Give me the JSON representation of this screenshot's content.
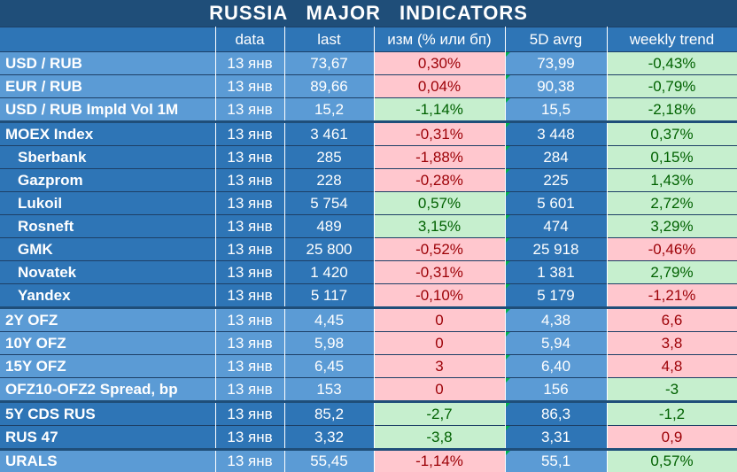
{
  "title": "RUSSIA MAJOR INDICATORS",
  "columns": [
    "",
    "data",
    "last",
    "изм (% или бп)",
    "5D avrg",
    "weekly trend"
  ],
  "colors": {
    "header": "#1f4e79",
    "light_blue": "#5b9bd5",
    "mid_blue": "#2e75b6",
    "positive_bg": "#c6efce",
    "positive_text": "#006100",
    "negative_bg": "#ffc7ce",
    "negative_text": "#9c0006"
  },
  "rows": [
    {
      "label": "USD / RUB",
      "date": "13 янв",
      "last": "73,67",
      "change": "0,30%",
      "change_sign": "neg",
      "avg": "73,99",
      "trend": "-0,43%",
      "trend_sign": "pos",
      "group": "light",
      "indent": false
    },
    {
      "label": "EUR / RUB",
      "date": "13 янв",
      "last": "89,66",
      "change": "0,04%",
      "change_sign": "neg",
      "avg": "90,38",
      "trend": "-0,79%",
      "trend_sign": "pos",
      "group": "light",
      "indent": false
    },
    {
      "label": "USD / RUB Impld Vol 1M",
      "date": "13 янв",
      "last": "15,2",
      "change": "-1,14%",
      "change_sign": "pos",
      "avg": "15,5",
      "trend": "-2,18%",
      "trend_sign": "pos",
      "group": "light",
      "indent": false
    },
    {
      "label": "MOEX Index",
      "date": "13 янв",
      "last": "3 461",
      "change": "-0,31%",
      "change_sign": "neg",
      "avg": "3 448",
      "trend": "0,37%",
      "trend_sign": "pos",
      "group": "dark",
      "indent": false,
      "group_start": true
    },
    {
      "label": "Sberbank",
      "date": "13 янв",
      "last": "285",
      "change": "-1,88%",
      "change_sign": "neg",
      "avg": "284",
      "trend": "0,15%",
      "trend_sign": "pos",
      "group": "dark",
      "indent": true
    },
    {
      "label": "Gazprom",
      "date": "13 янв",
      "last": "228",
      "change": "-0,28%",
      "change_sign": "neg",
      "avg": "225",
      "trend": "1,43%",
      "trend_sign": "pos",
      "group": "dark",
      "indent": true
    },
    {
      "label": "Lukoil",
      "date": "13 янв",
      "last": "5 754",
      "change": "0,57%",
      "change_sign": "pos",
      "avg": "5 601",
      "trend": "2,72%",
      "trend_sign": "pos",
      "group": "dark",
      "indent": true
    },
    {
      "label": "Rosneft",
      "date": "13 янв",
      "last": "489",
      "change": "3,15%",
      "change_sign": "pos",
      "avg": "474",
      "trend": "3,29%",
      "trend_sign": "pos",
      "group": "dark",
      "indent": true
    },
    {
      "label": "GMK",
      "date": "13 янв",
      "last": "25 800",
      "change": "-0,52%",
      "change_sign": "neg",
      "avg": "25 918",
      "trend": "-0,46%",
      "trend_sign": "neg",
      "group": "dark",
      "indent": true
    },
    {
      "label": "Novatek",
      "date": "13 янв",
      "last": "1 420",
      "change": "-0,31%",
      "change_sign": "neg",
      "avg": "1 381",
      "trend": "2,79%",
      "trend_sign": "pos",
      "group": "dark",
      "indent": true
    },
    {
      "label": "Yandex",
      "date": "13 янв",
      "last": "5 117",
      "change": "-0,10%",
      "change_sign": "neg",
      "avg": "5 179",
      "trend": "-1,21%",
      "trend_sign": "neg",
      "group": "dark",
      "indent": true
    },
    {
      "label": "2Y OFZ",
      "date": "13 янв",
      "last": "4,45",
      "change": "0",
      "change_sign": "neg",
      "avg": "4,38",
      "trend": "6,6",
      "trend_sign": "neg",
      "group": "light",
      "indent": false,
      "group_start": true
    },
    {
      "label": "10Y OFZ",
      "date": "13 янв",
      "last": "5,98",
      "change": "0",
      "change_sign": "neg",
      "avg": "5,94",
      "trend": "3,8",
      "trend_sign": "neg",
      "group": "light",
      "indent": false
    },
    {
      "label": "15Y OFZ",
      "date": "13 янв",
      "last": "6,45",
      "change": "3",
      "change_sign": "neg",
      "avg": "6,40",
      "trend": "4,8",
      "trend_sign": "neg",
      "group": "light",
      "indent": false
    },
    {
      "label": "OFZ10-OFZ2 Spread, bp",
      "date": "13 янв",
      "last": "153",
      "change": "0",
      "change_sign": "neg",
      "avg": "156",
      "trend": "-3",
      "trend_sign": "pos",
      "group": "light",
      "indent": false
    },
    {
      "label": "5Y CDS RUS",
      "date": "13 янв",
      "last": "85,2",
      "change": "-2,7",
      "change_sign": "pos",
      "avg": "86,3",
      "trend": "-1,2",
      "trend_sign": "pos",
      "group": "dark",
      "indent": false,
      "group_start": true
    },
    {
      "label": "RUS 47",
      "date": "13 янв",
      "last": "3,32",
      "change": "-3,8",
      "change_sign": "pos",
      "avg": "3,31",
      "trend": "0,9",
      "trend_sign": "neg",
      "group": "dark",
      "indent": false
    },
    {
      "label": "URALS",
      "date": "13 янв",
      "last": "55,45",
      "change": "-1,14%",
      "change_sign": "neg",
      "avg": "55,1",
      "trend": "0,57%",
      "trend_sign": "pos",
      "group": "light",
      "indent": false,
      "group_start": true
    }
  ]
}
